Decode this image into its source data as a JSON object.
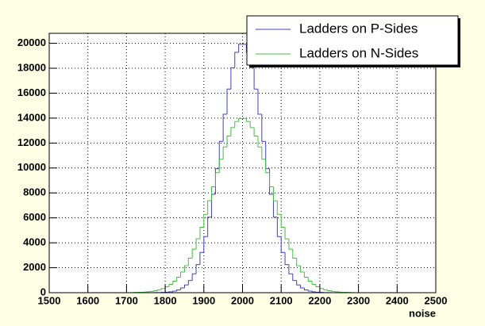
{
  "chart_data": {
    "type": "histogram",
    "x_label": "noise",
    "bins": [
      1500,
      1510,
      1520,
      1530,
      1540,
      1550,
      1560,
      1570,
      1580,
      1590,
      1600,
      1610,
      1620,
      1630,
      1640,
      1650,
      1660,
      1670,
      1680,
      1690,
      1700,
      1710,
      1720,
      1730,
      1740,
      1750,
      1760,
      1770,
      1780,
      1790,
      1800,
      1810,
      1820,
      1830,
      1840,
      1850,
      1860,
      1870,
      1880,
      1890,
      1900,
      1910,
      1920,
      1930,
      1940,
      1950,
      1960,
      1970,
      1980,
      1990,
      2000,
      2010,
      2020,
      2030,
      2040,
      2050,
      2060,
      2070,
      2080,
      2090,
      2100,
      2110,
      2120,
      2130,
      2140,
      2150,
      2160,
      2170,
      2180,
      2190,
      2200,
      2210,
      2220,
      2230,
      2240,
      2250,
      2260,
      2270,
      2280,
      2290,
      2300,
      2310,
      2320,
      2330,
      2340,
      2350,
      2360,
      2370,
      2380,
      2390,
      2400,
      2410,
      2420,
      2430,
      2440,
      2450,
      2460,
      2470,
      2480,
      2490,
      2500
    ],
    "series": [
      {
        "name": "Ladders on P-Sides",
        "color": "#4040c8",
        "values": [
          0,
          0,
          0,
          0,
          0,
          0,
          0,
          0,
          0,
          0,
          0,
          0,
          0,
          0,
          0,
          0,
          0,
          0,
          0,
          0,
          0,
          0,
          0,
          0,
          0,
          0,
          0,
          5,
          10,
          20,
          40,
          70,
          130,
          220,
          380,
          620,
          980,
          1510,
          2250,
          3230,
          4500,
          6060,
          7890,
          9950,
          12130,
          14310,
          16330,
          18040,
          19270,
          19920,
          19920,
          19270,
          18040,
          16330,
          14310,
          12130,
          9950,
          7890,
          6060,
          4500,
          3230,
          2250,
          1510,
          980,
          620,
          380,
          220,
          130,
          70,
          40,
          20,
          10,
          5,
          0,
          0,
          0,
          0,
          0,
          0,
          0,
          0,
          0,
          0,
          0,
          0,
          0,
          0,
          0,
          0,
          0,
          0,
          0,
          0,
          0,
          0,
          0,
          0,
          0,
          0,
          0
        ]
      },
      {
        "name": "Ladders on N-Sides",
        "color": "#40c040",
        "values": [
          0,
          0,
          0,
          0,
          0,
          0,
          0,
          0,
          0,
          0,
          0,
          0,
          0,
          0,
          0,
          0,
          0,
          0,
          0,
          0,
          0,
          10,
          20,
          30,
          40,
          70,
          100,
          160,
          230,
          330,
          480,
          670,
          920,
          1240,
          1650,
          2160,
          2770,
          3490,
          4320,
          5250,
          6280,
          7370,
          8490,
          9620,
          10700,
          11690,
          12560,
          13240,
          13720,
          13970,
          13970,
          13720,
          13240,
          12560,
          11690,
          10700,
          9620,
          8490,
          7370,
          6280,
          5250,
          4320,
          3490,
          2770,
          2160,
          1650,
          1240,
          920,
          670,
          480,
          330,
          230,
          160,
          100,
          70,
          40,
          30,
          20,
          10,
          0,
          0,
          0,
          0,
          0,
          0,
          0,
          0,
          0,
          0,
          0,
          0,
          0,
          0,
          0,
          0,
          0,
          0,
          0,
          0,
          0
        ]
      }
    ],
    "xlim": [
      1500,
      2500
    ],
    "xticks": [
      1500,
      1600,
      1700,
      1800,
      1900,
      2000,
      2100,
      2200,
      2300,
      2400,
      2500
    ],
    "ylim": [
      0,
      20800
    ],
    "yticks": [
      0,
      2000,
      4000,
      6000,
      8000,
      10000,
      12000,
      14000,
      16000,
      18000,
      20000
    ],
    "grid": true,
    "legend": "top-right"
  }
}
